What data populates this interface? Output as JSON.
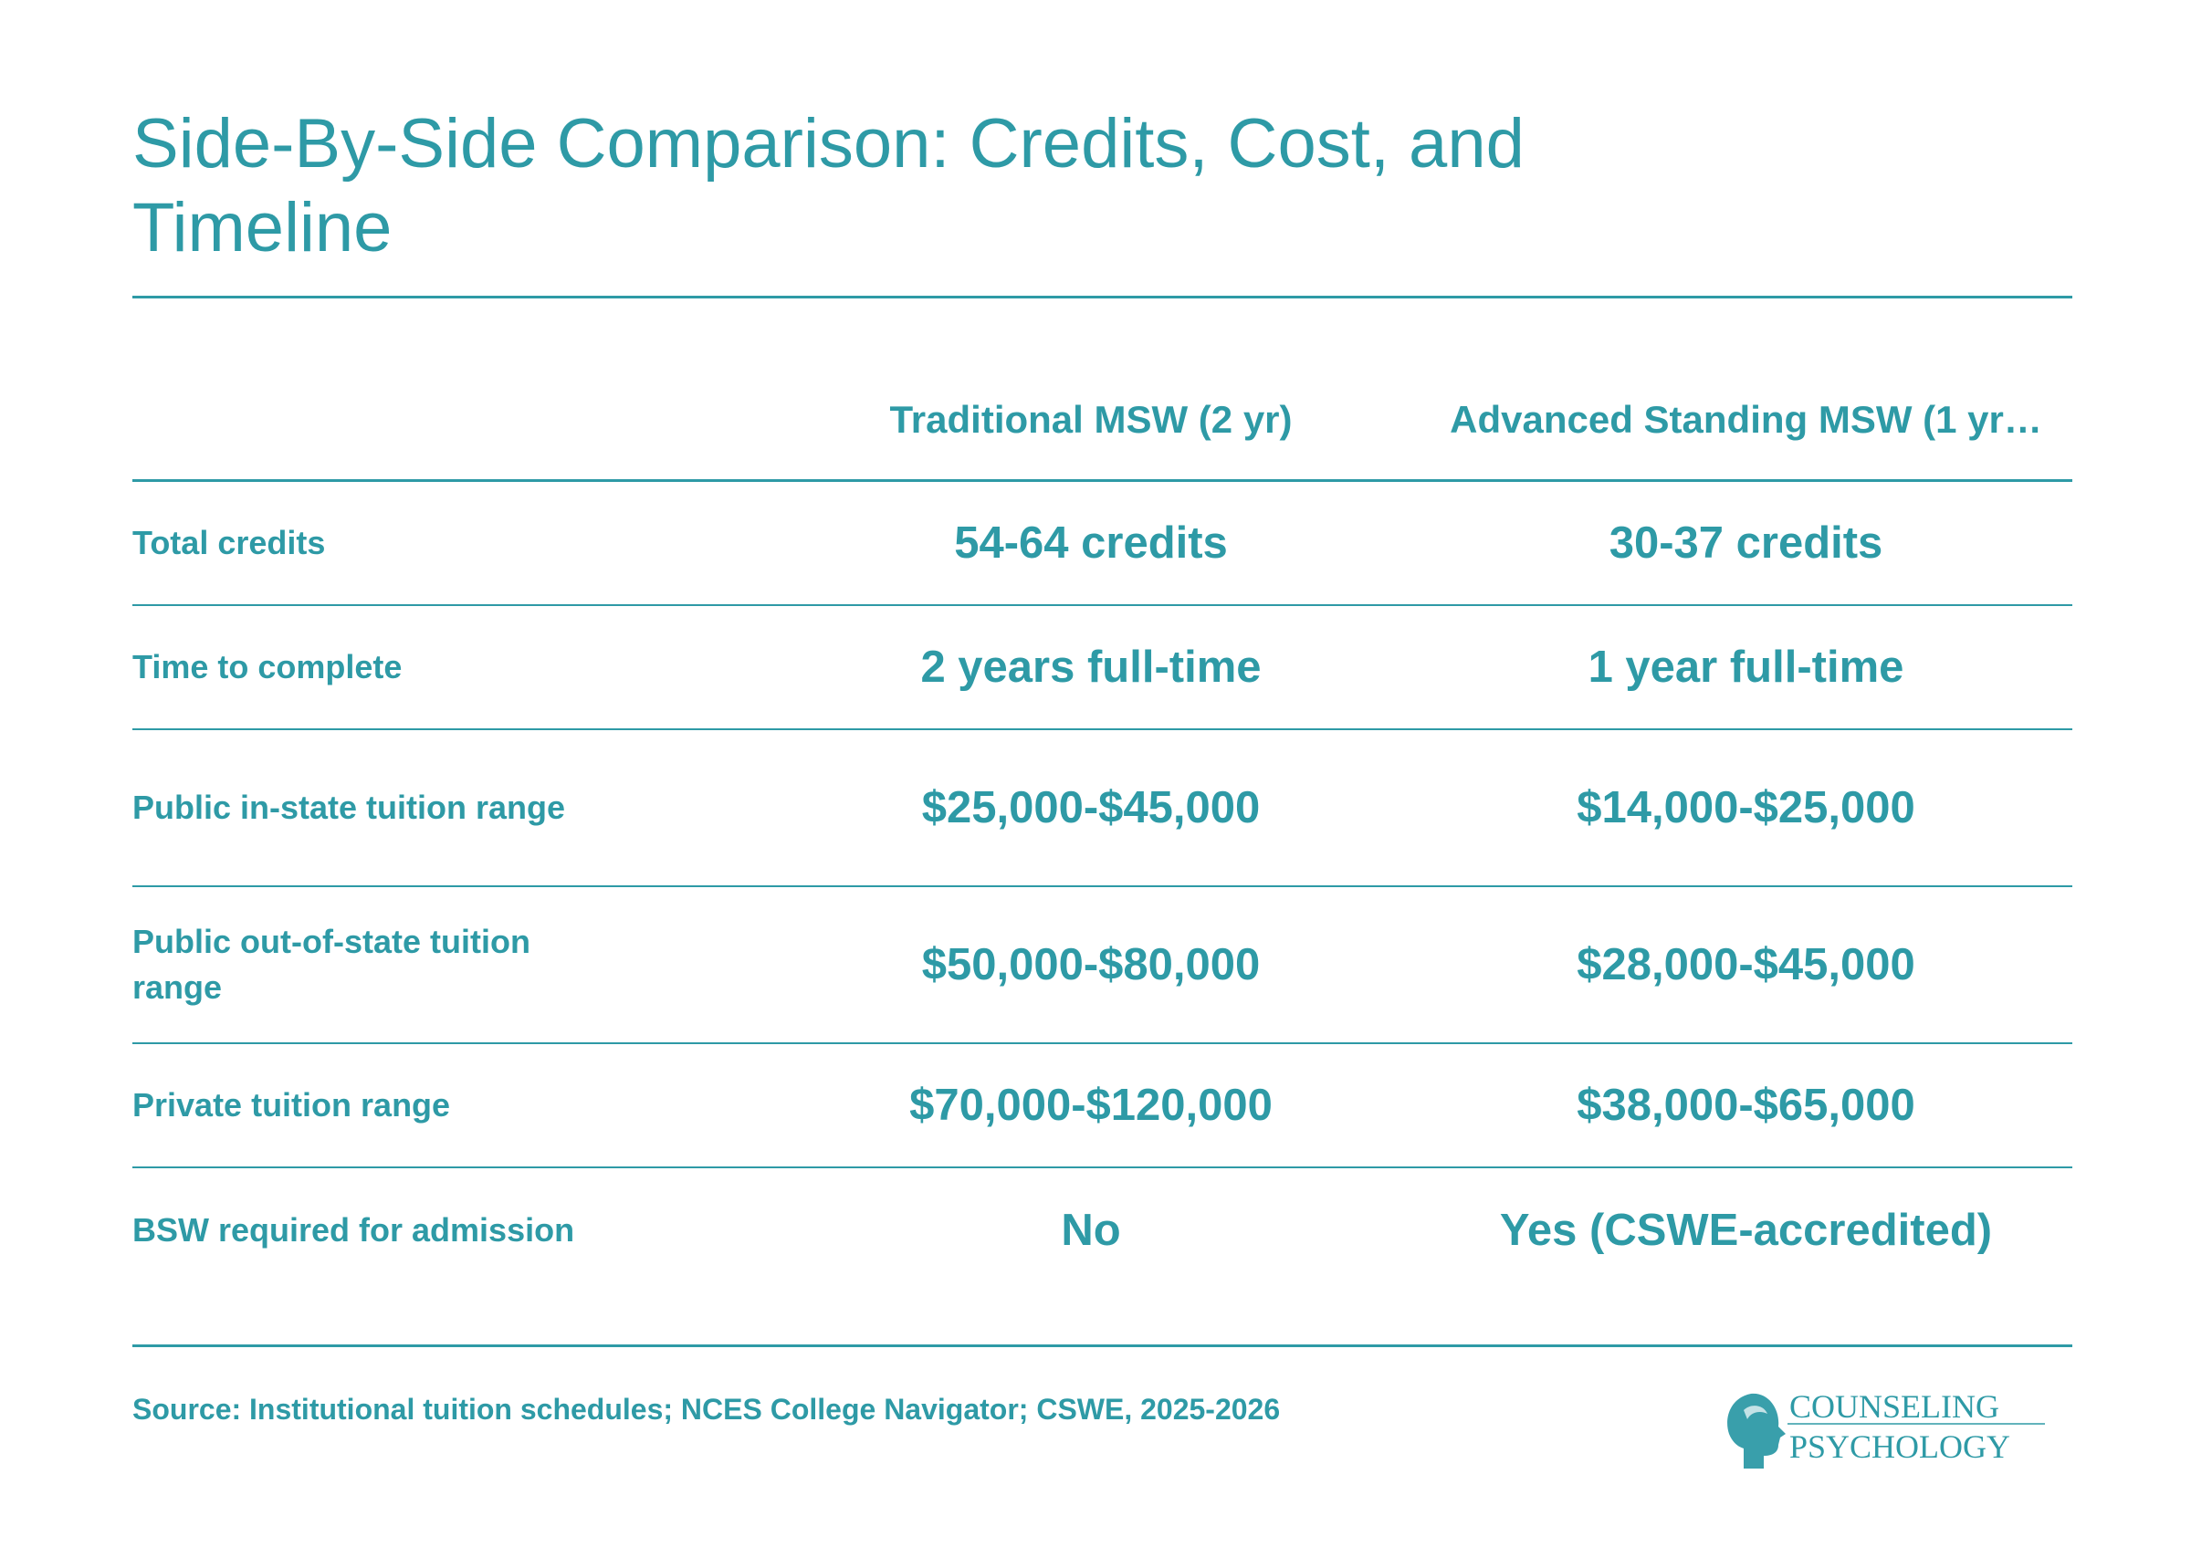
{
  "title": "Side-By-Side Comparison: Credits, Cost, and Timeline",
  "chart_data": {
    "type": "table",
    "columns": [
      "",
      "Traditional MSW (2 yr)",
      "Advanced Standing MSW (1 yr…"
    ],
    "rows": [
      {
        "label": "Total credits",
        "values": [
          "54-64 credits",
          "30-37 credits"
        ]
      },
      {
        "label": "Time to complete",
        "values": [
          "2 years full-time",
          "1 year full-time"
        ]
      },
      {
        "label": "Public in-state tuition range",
        "values": [
          "$25,000-$45,000",
          "$14,000-$25,000"
        ]
      },
      {
        "label": "Public out-of-state tuition range",
        "values": [
          "$50,000-$80,000",
          "$28,000-$45,000"
        ]
      },
      {
        "label": "Private tuition range",
        "values": [
          "$70,000-$120,000",
          "$38,000-$65,000"
        ]
      },
      {
        "label": "BSW required for admission",
        "values": [
          "No",
          "Yes (CSWE-accredited)"
        ]
      }
    ]
  },
  "source": "Source: Institutional tuition schedules; NCES College Navigator; CSWE, 2025-2026",
  "logo": {
    "line1": "COUNSELING",
    "line2": "PSYCHOLOGY"
  },
  "colors": {
    "accent": "#2e9aa6",
    "background": "#ffffff"
  }
}
